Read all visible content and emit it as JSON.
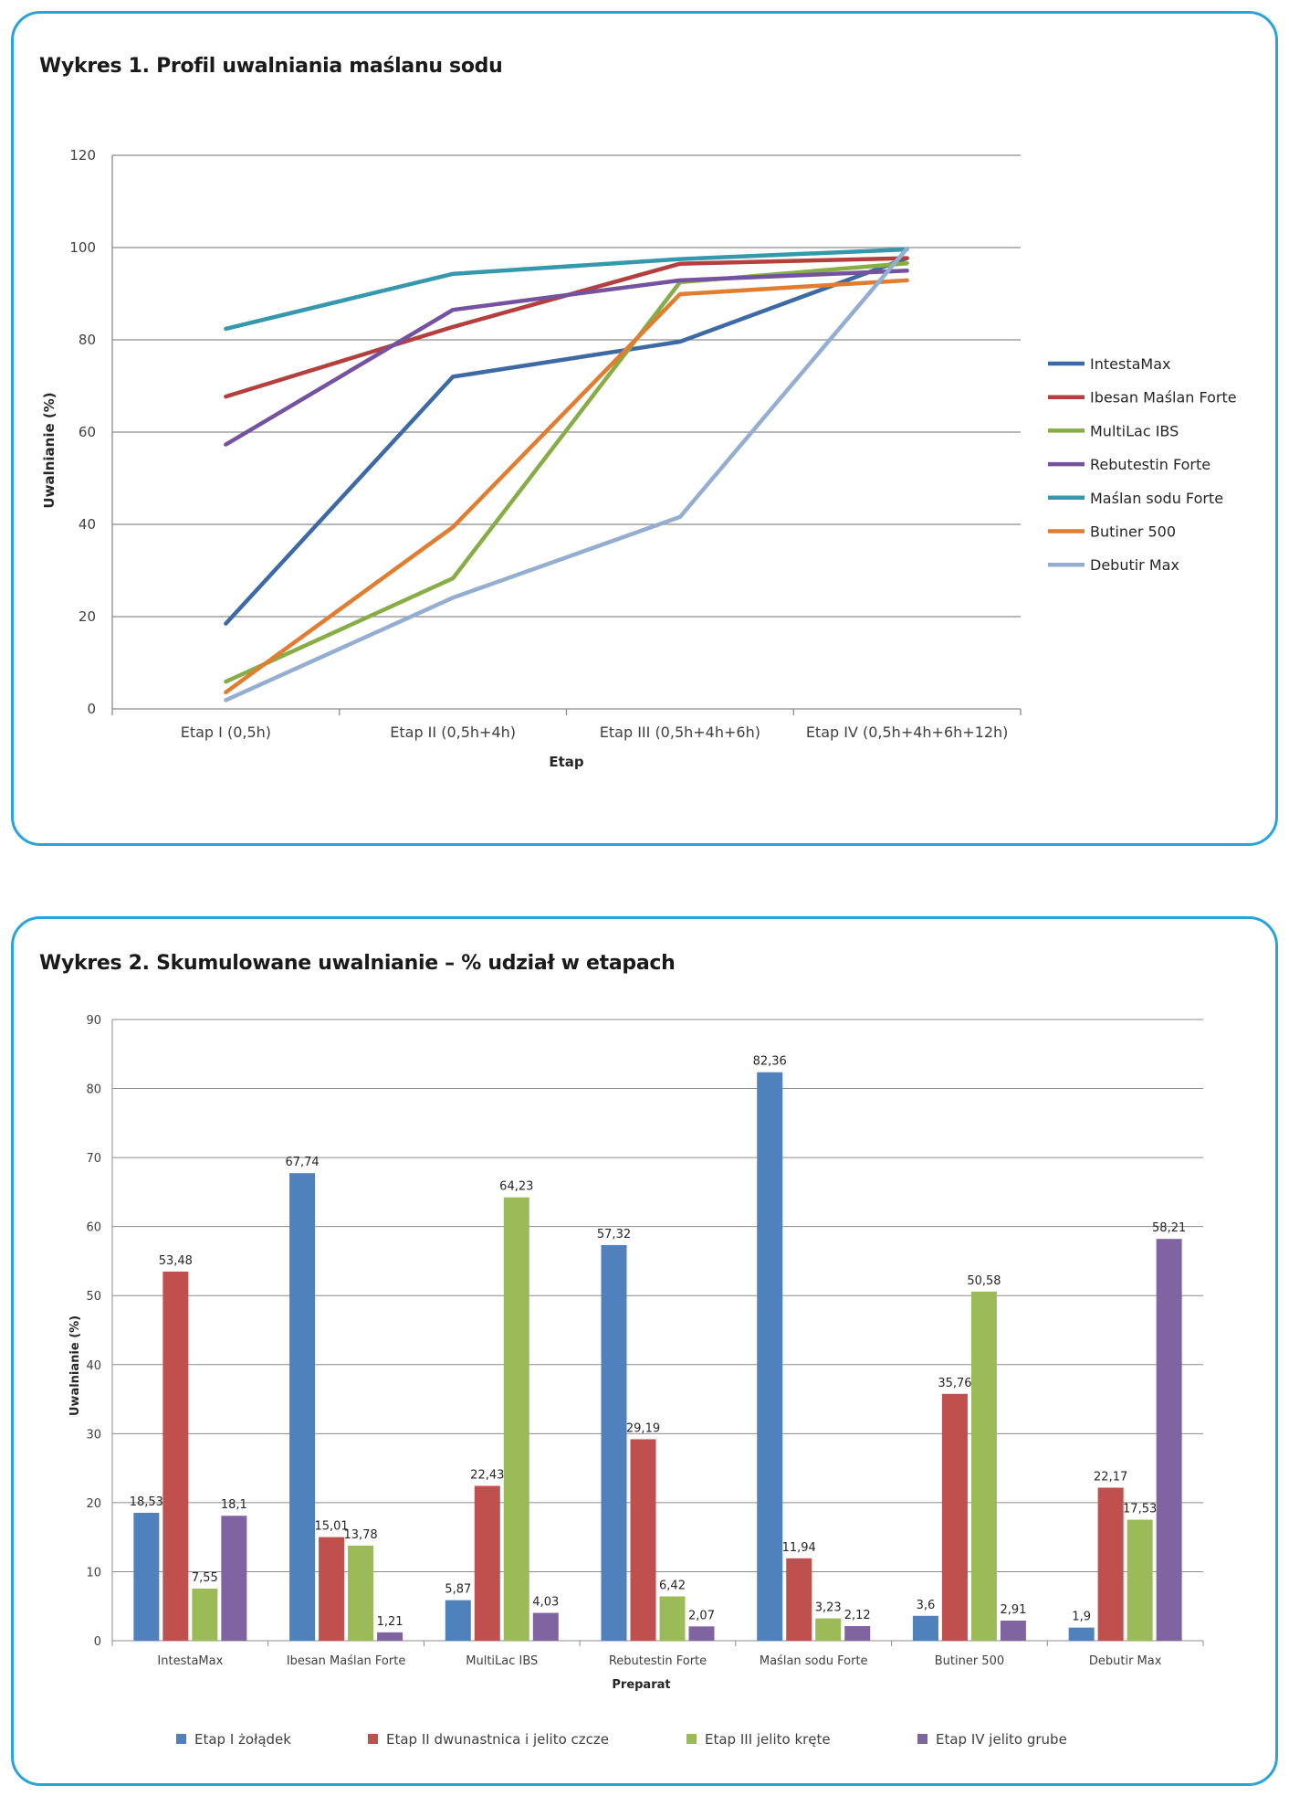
{
  "charts": [
    {
      "title": "Wykres 1. Profil uwalniania maślanu sodu"
    },
    {
      "title": "Wykres 2. Skumulowane uwalnianie – % udział w etapach"
    }
  ],
  "chart_data": [
    {
      "type": "line",
      "title": "Wykres 1. Profil uwalniania maślanu sodu",
      "xlabel": "Etap",
      "ylabel": "Uwalnianie (%)",
      "ylim": [
        0,
        120
      ],
      "yticks": [
        "0",
        "20",
        "40",
        "60",
        "80",
        "100",
        "120"
      ],
      "categories": [
        "Etap I (0,5h)",
        "Etap II (0,5h+4h)",
        "Etap III (0,5h+4h+6h)",
        "Etap IV (0,5h+4h+6h+12h)"
      ],
      "legend_position": "right",
      "series": [
        {
          "name": "IntestaMax",
          "color": "#3d6aa5",
          "values": [
            18.5,
            72,
            79.6,
            97.7
          ]
        },
        {
          "name": "Ibesan Maślan Forte",
          "color": "#b3403d",
          "values": [
            67.7,
            82.8,
            96.5,
            97.7
          ]
        },
        {
          "name": "MultiLac IBS",
          "color": "#86ad46",
          "values": [
            5.9,
            28.3,
            92.5,
            96.6
          ]
        },
        {
          "name": "Rebutestin Forte",
          "color": "#7552a0",
          "values": [
            57.3,
            86.5,
            92.9,
            95
          ]
        },
        {
          "name": "Maślan sodu Forte",
          "color": "#3598ad",
          "values": [
            82.4,
            94.3,
            97.5,
            99.6
          ]
        },
        {
          "name": "Butiner 500",
          "color": "#e07d30",
          "values": [
            3.6,
            39.4,
            89.9,
            92.9
          ]
        },
        {
          "name": "Debutir Max",
          "color": "#94aed2",
          "values": [
            1.9,
            24.1,
            41.6,
            99.8
          ]
        }
      ]
    },
    {
      "type": "bar",
      "title": "Wykres 2. Skumulowane uwalnianie – % udział w etapach",
      "xlabel": "Preparat",
      "ylabel": "Uwalnianie (%)",
      "ylim": [
        0,
        90
      ],
      "yticks": [
        "0",
        "10",
        "20",
        "30",
        "40",
        "50",
        "60",
        "70",
        "80",
        "90"
      ],
      "categories": [
        "IntestaMax",
        "Ibesan Maślan Forte",
        "MultiLac IBS",
        "Rebutestin Forte",
        "Maślan sodu Forte",
        "Butiner 500",
        "Debutir Max"
      ],
      "legend_position": "bottom",
      "series": [
        {
          "name": "Etap I żołądek",
          "color": "#4f81bd",
          "values": [
            18.53,
            67.74,
            5.87,
            57.32,
            82.36,
            3.6,
            1.9
          ],
          "labels": [
            "18,53",
            "67,74",
            "5,87",
            "57,32",
            "82,36",
            "3,6",
            "1,9"
          ]
        },
        {
          "name": "Etap II dwunastnica i jelito czcze",
          "color": "#c0504d",
          "values": [
            53.48,
            15.01,
            22.43,
            29.19,
            11.94,
            35.76,
            22.17
          ],
          "labels": [
            "53,48",
            "15,01",
            "22,43",
            "29,19",
            "11,94",
            "35,76",
            "22,17"
          ]
        },
        {
          "name": "Etap III jelito kręte",
          "color": "#9bbb59",
          "values": [
            7.55,
            13.78,
            64.23,
            6.42,
            3.23,
            50.58,
            17.53
          ],
          "labels": [
            "7,55",
            "13,78",
            "64,23",
            "6,42",
            "3,23",
            "50,58",
            "17,53"
          ]
        },
        {
          "name": "Etap IV jelito grube",
          "color": "#8064a2",
          "values": [
            18.1,
            1.21,
            4.03,
            2.07,
            2.12,
            2.91,
            58.21
          ],
          "labels": [
            "18,1",
            "1,21",
            "4,03",
            "2,07",
            "2,12",
            "2,91",
            "58,21"
          ]
        }
      ]
    }
  ]
}
